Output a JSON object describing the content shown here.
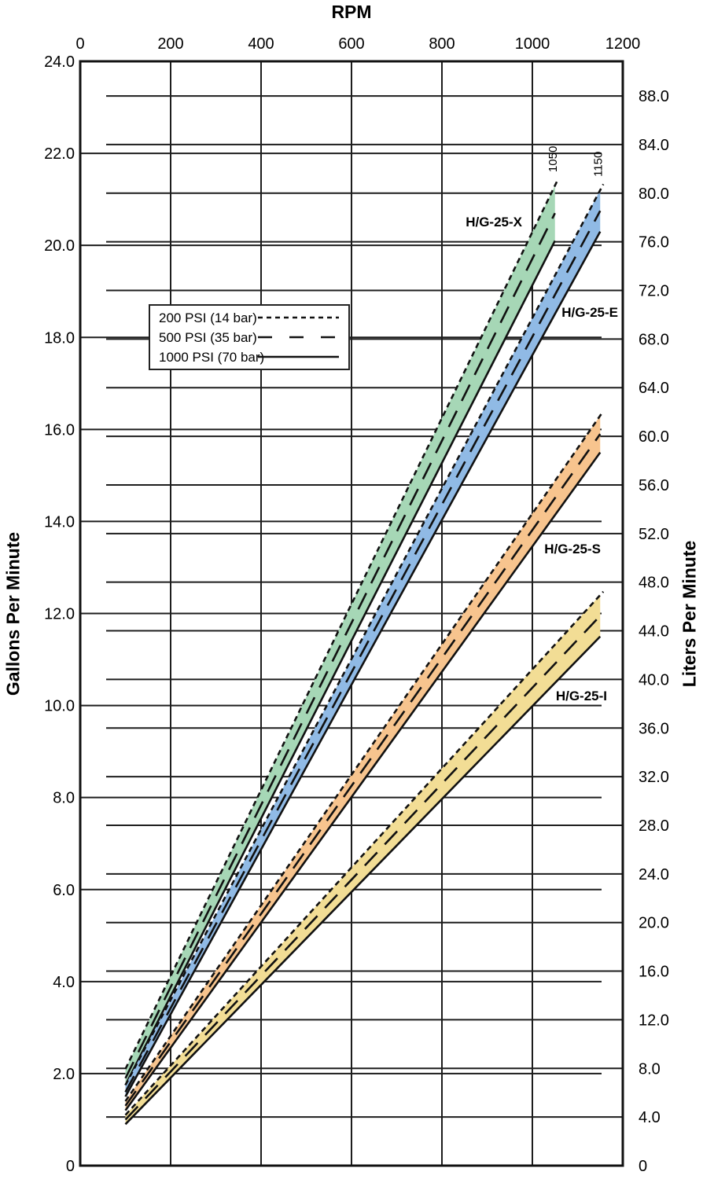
{
  "chart_data": {
    "type": "line",
    "top_axis_title": "RPM",
    "left_axis_title": "Gallons Per Minute",
    "right_axis_title": "Liters Per Minute",
    "x_axis": {
      "min": 0,
      "max": 1200,
      "tick_labels": [
        "0",
        "200",
        "400",
        "600",
        "800",
        "1000",
        "1200"
      ]
    },
    "y_left_axis": {
      "min": 0,
      "max": 24,
      "tick_step": 2,
      "tick_labels": [
        "24.0",
        "22.0",
        "20.0",
        "18.0",
        "16.0",
        "14.0",
        "12.0",
        "10.0",
        "8.0",
        "6.0",
        "4.0",
        "2.0",
        "0"
      ]
    },
    "y_right_axis": {
      "min": 0,
      "max": 88,
      "tick_step": 4,
      "tick_labels": [
        "88.0",
        "84.0",
        "80.0",
        "76.0",
        "72.0",
        "68.0",
        "64.0",
        "60.0",
        "56.0",
        "52.0",
        "48.0",
        "44.0",
        "40.0",
        "36.0",
        "32.0",
        "28.0",
        "24.0",
        "20.0",
        "16.0",
        "12.0",
        "8.0",
        "4.0",
        "0"
      ]
    },
    "liters_per_gallon": 3.78541,
    "grid": "on",
    "legend_position": "upper-left-inside",
    "legend": [
      {
        "label": "200 PSI (14 bar)",
        "style": "dotted"
      },
      {
        "label": "500 PSI (35 bar)",
        "style": "dashed"
      },
      {
        "label": "1000 PSI (70 bar)",
        "style": "solid"
      }
    ],
    "series": [
      {
        "name": "H/G-25-X",
        "fill_color": "#a6d7b6",
        "rpm_start": 100,
        "rpm_end": 1050,
        "end_label": "1050",
        "lines": [
          {
            "pressure": "200 PSI (14 bar)",
            "style": "dotted",
            "gpm_at_start": 2.1,
            "gpm_at_end": 21.3
          },
          {
            "pressure": "500 PSI (35 bar)",
            "style": "dashed",
            "gpm_at_start": 1.9,
            "gpm_at_end": 20.7
          },
          {
            "pressure": "1000 PSI (70 bar)",
            "style": "solid",
            "gpm_at_start": 1.75,
            "gpm_at_end": 20.1
          }
        ]
      },
      {
        "name": "H/G-25-E",
        "fill_color": "#90bae5",
        "rpm_start": 100,
        "rpm_end": 1150,
        "end_label": "1150",
        "lines": [
          {
            "pressure": "200 PSI (14 bar)",
            "style": "dotted",
            "gpm_at_start": 1.75,
            "gpm_at_end": 21.2
          },
          {
            "pressure": "500 PSI (35 bar)",
            "style": "dashed",
            "gpm_at_start": 1.6,
            "gpm_at_end": 20.75
          },
          {
            "pressure": "1000 PSI (70 bar)",
            "style": "solid",
            "gpm_at_start": 1.5,
            "gpm_at_end": 20.3
          }
        ]
      },
      {
        "name": "H/G-25-S",
        "fill_color": "#f7c48e",
        "rpm_start": 100,
        "rpm_end": 1150,
        "end_label": null,
        "lines": [
          {
            "pressure": "200 PSI (14 bar)",
            "style": "dotted",
            "gpm_at_start": 1.4,
            "gpm_at_end": 16.3
          },
          {
            "pressure": "500 PSI (35 bar)",
            "style": "dashed",
            "gpm_at_start": 1.3,
            "gpm_at_end": 15.9
          },
          {
            "pressure": "1000 PSI (70 bar)",
            "style": "solid",
            "gpm_at_start": 1.2,
            "gpm_at_end": 15.5
          }
        ]
      },
      {
        "name": "H/G-25-I",
        "fill_color": "#f2dd95",
        "rpm_start": 100,
        "rpm_end": 1150,
        "end_label": null,
        "lines": [
          {
            "pressure": "200 PSI (14 bar)",
            "style": "dotted",
            "gpm_at_start": 1.1,
            "gpm_at_end": 12.4
          },
          {
            "pressure": "500 PSI (35 bar)",
            "style": "dashed",
            "gpm_at_start": 1.0,
            "gpm_at_end": 11.95
          },
          {
            "pressure": "1000 PSI (70 bar)",
            "style": "solid",
            "gpm_at_start": 0.9,
            "gpm_at_end": 11.5
          }
        ]
      }
    ]
  }
}
